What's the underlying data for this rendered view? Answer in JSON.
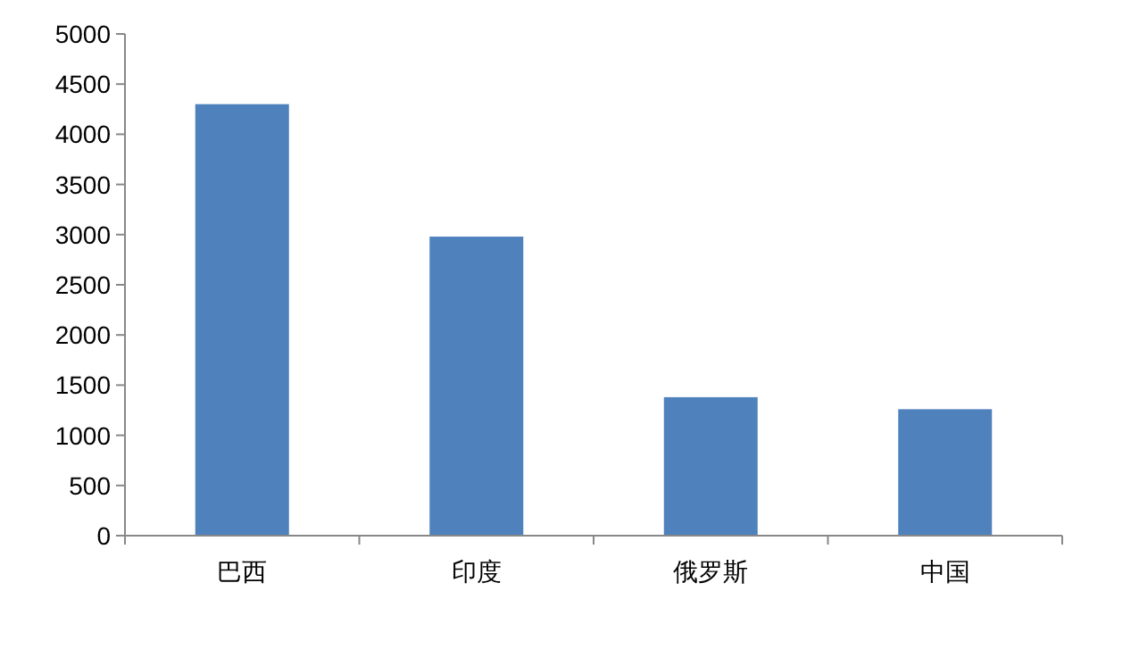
{
  "chart_data": {
    "type": "bar",
    "categories": [
      "巴西",
      "印度",
      "俄罗斯",
      "中国"
    ],
    "values": [
      4300,
      2980,
      1380,
      1260
    ],
    "color": "#4f81bd",
    "ylim": [
      0,
      5000
    ],
    "yticks": [
      0,
      500,
      1000,
      1500,
      2000,
      2500,
      3000,
      3500,
      4000,
      4500,
      5000
    ]
  }
}
